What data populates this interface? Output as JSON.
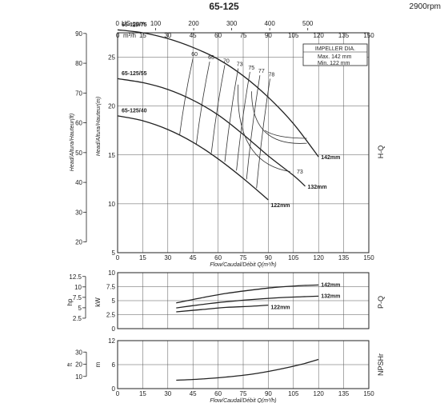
{
  "header": {
    "title": "65-125",
    "speed": "2900rpm"
  },
  "chart_data": [
    {
      "type": "line",
      "name_label": "H-Q",
      "top_axis_unit_label": "US gpm",
      "top_axis_ticks": [
        0,
        100,
        200,
        300,
        400,
        500
      ],
      "flow_unit_label": "m³/h",
      "flow_ticks": [
        0,
        15,
        30,
        45,
        60,
        75,
        90,
        105,
        120,
        135,
        150
      ],
      "xlabel": "Flow/Caudal/Débit Q(m³/h)",
      "ylabel": "Head/Altura/Hauteur(m)",
      "ylabel_ft": "Head/Altura/Hauteur(ft)",
      "ylim": [
        5,
        27.5
      ],
      "y_ticks": [
        5,
        10,
        15,
        20,
        25
      ],
      "ft_ticks": [
        20,
        30,
        40,
        50,
        60,
        70,
        80,
        90
      ],
      "xlim": [
        0,
        150
      ],
      "impeller_box": {
        "title": "IMPELLER DIA.",
        "max": "Max.   142  mm",
        "min": "Min.   122  mm"
      },
      "series": [
        {
          "name": "142mm",
          "x": [
            0,
            15,
            30,
            45,
            60,
            75,
            90,
            105,
            120
          ],
          "y": [
            27.8,
            27.5,
            26.9,
            26.0,
            24.8,
            23.1,
            20.9,
            18.2,
            14.8
          ]
        },
        {
          "name": "132mm",
          "x": [
            0,
            15,
            30,
            45,
            60,
            75,
            90,
            105,
            112
          ],
          "y": [
            22.8,
            22.4,
            21.7,
            20.6,
            19.1,
            17.1,
            14.9,
            12.9,
            11.8
          ]
        },
        {
          "name": "122mm",
          "x": [
            0,
            15,
            30,
            45,
            60,
            75,
            90
          ],
          "y": [
            19.0,
            18.5,
            17.6,
            16.3,
            14.6,
            12.6,
            10.4
          ]
        }
      ],
      "model_labels": [
        {
          "text": "65-125/75",
          "y": 27.9
        },
        {
          "text": "65-125/55",
          "y": 22.9
        },
        {
          "text": "65-125/40",
          "y": 19.1
        }
      ],
      "efficiency_labels": [
        "60",
        "65",
        "70",
        "73",
        "75",
        "77",
        "78",
        "73"
      ]
    },
    {
      "type": "line",
      "name_label": "P-Q",
      "unit_left": "hp",
      "unit_kw": "kW",
      "ylim": [
        0,
        10
      ],
      "kw_ticks": [
        0,
        2.5,
        5,
        7.5,
        10
      ],
      "hp_ticks": [
        2.5,
        5,
        7.5,
        10,
        12.5
      ],
      "series": [
        {
          "name": "142mm",
          "x": [
            35,
            50,
            65,
            80,
            95,
            110,
            120
          ],
          "y": [
            4.6,
            5.5,
            6.3,
            6.9,
            7.4,
            7.7,
            7.8
          ]
        },
        {
          "name": "132mm",
          "x": [
            35,
            50,
            65,
            80,
            95,
            110,
            120
          ],
          "y": [
            3.7,
            4.3,
            4.8,
            5.2,
            5.5,
            5.7,
            5.8
          ]
        },
        {
          "name": "122mm",
          "x": [
            35,
            50,
            65,
            80,
            90
          ],
          "y": [
            3.0,
            3.4,
            3.8,
            4.0,
            4.2
          ]
        }
      ]
    },
    {
      "type": "line",
      "name_label": "NPSHr",
      "unit_left": "ft",
      "unit_m": "m",
      "ylim": [
        0,
        12
      ],
      "m_ticks": [
        0,
        6,
        12
      ],
      "ft_ticks": [
        10,
        20,
        30
      ],
      "xlabel": "Flow/Caudal/Débit Q(m³/h)",
      "series": [
        {
          "name": "NPSHr",
          "x": [
            35,
            50,
            65,
            80,
            95,
            110,
            120
          ],
          "y": [
            2.1,
            2.4,
            2.9,
            3.6,
            4.7,
            6.1,
            7.3
          ]
        }
      ]
    }
  ]
}
